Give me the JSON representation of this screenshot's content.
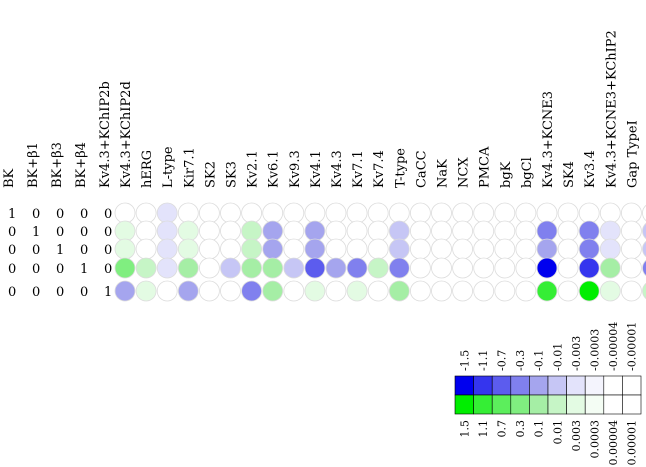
{
  "chart_data": {
    "type": "heatmap",
    "condition_labels": [
      "BK",
      "BK+β1",
      "BK+β3",
      "BK+β4",
      "Kv4.3+KChIP2b"
    ],
    "condition_matrix": [
      [
        1,
        0,
        0,
        0,
        0
      ],
      [
        0,
        1,
        0,
        0,
        0
      ],
      [
        0,
        0,
        1,
        0,
        0
      ],
      [
        0,
        0,
        0,
        1,
        0
      ],
      [
        0,
        0,
        0,
        0,
        1
      ]
    ],
    "currents": [
      "Kv4.3+KChIP2d",
      "hERG",
      "L-type",
      "Kir7.1",
      "SK2",
      "SK3",
      "Kv2.1",
      "Kv6.1",
      "Kv9.3",
      "Kv4.1",
      "Kv4.3",
      "Kv7.1",
      "Kv7.4",
      "T-type",
      "CaCC",
      "NaK",
      "NCX",
      "PMCA",
      "bgK",
      "bgCl",
      "Kv4.3+KCNE3",
      "SK4",
      "Kv3.4",
      "Kv4.3+KCNE3+KChIP2",
      "Gap TypeI",
      "Gap Type II"
    ],
    "values": [
      [
        0,
        0,
        -0.003,
        0,
        0,
        0,
        0,
        0,
        0,
        0,
        0,
        0,
        0,
        0,
        0,
        0,
        0,
        0,
        0,
        0,
        0,
        0,
        0,
        0,
        0,
        0
      ],
      [
        0.003,
        0,
        -0.003,
        0.003,
        0,
        0,
        0.01,
        -0.1,
        0,
        -0.1,
        0,
        0,
        0,
        -0.01,
        0,
        0,
        0,
        0,
        0,
        0,
        -0.3,
        0,
        -0.3,
        -0.003,
        0,
        -0.01
      ],
      [
        0.003,
        0,
        -0.003,
        0.003,
        0,
        0,
        0.01,
        -0.1,
        0,
        -0.1,
        0,
        0,
        0,
        -0.01,
        0,
        0,
        0,
        0,
        0,
        0,
        -0.1,
        0,
        -0.3,
        -0.003,
        0,
        -0.01
      ],
      [
        0.3,
        0.01,
        -0.003,
        0.1,
        0,
        -0.01,
        0.1,
        0.1,
        -0.01,
        -0.7,
        -0.1,
        -0.3,
        0.01,
        -0.3,
        0,
        0,
        0,
        0,
        0,
        0,
        -1.5,
        0,
        -1.1,
        0.1,
        0,
        -0.3
      ],
      [
        -0.1,
        0.003,
        0,
        -0.1,
        0,
        0,
        -0.3,
        0.1,
        0,
        0.003,
        0,
        0.003,
        0,
        0.1,
        0,
        0,
        0,
        0,
        0,
        0,
        1.1,
        0,
        1.5,
        0.003,
        0,
        0.03
      ]
    ],
    "colorbar": {
      "negative_labels": [
        "-1.5",
        "-1.1",
        "-0.7",
        "-0.3",
        "-0.1",
        "-0.01",
        "-0.003",
        "-0.0003",
        "-0.00004",
        "-0.00001"
      ],
      "positive_labels": [
        "1.5",
        "1.1",
        "0.7",
        "0.3",
        "0.1",
        "0.01",
        "0.003",
        "0.0003",
        "0.00004",
        "0.00001"
      ],
      "negative_colors": [
        "#0000ee",
        "#3535ee",
        "#5c5cee",
        "#8080ee",
        "#a5a5ee",
        "#c6c6f5",
        "#e3e3fb",
        "#f4f4fd",
        "#ffffff",
        "#ffffff"
      ],
      "positive_colors": [
        "#00ee00",
        "#35ee35",
        "#5cee5c",
        "#80ee80",
        "#a5eea5",
        "#c6f5c6",
        "#e3fbe3",
        "#f4fdf4",
        "#ffffff",
        "#ffffff"
      ]
    },
    "title": "",
    "xlabel": "",
    "ylabel": ""
  }
}
